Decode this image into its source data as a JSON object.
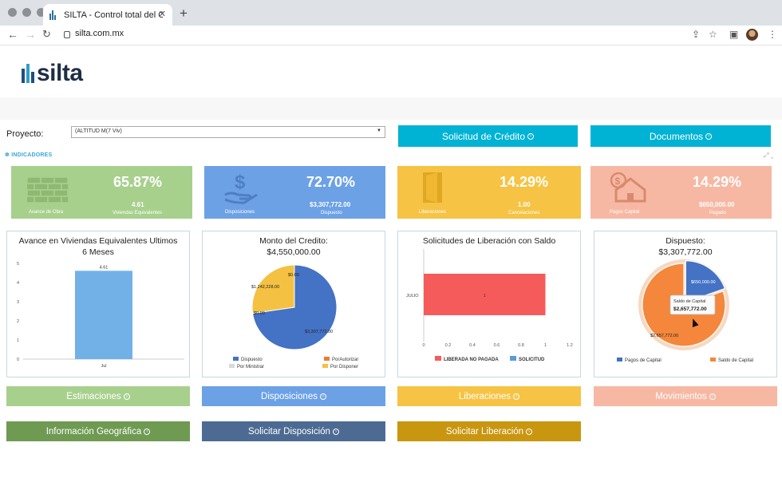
{
  "browser": {
    "tab_title": "SILTA - Control total del Crédito",
    "tab_close": "✕",
    "new_tab": "+",
    "url": "silta.com.mx"
  },
  "logo": {
    "text": "silta"
  },
  "project": {
    "label": "Proyecto:",
    "select_value": "(ALTITUD M(7 Viv)"
  },
  "top_buttons": {
    "solicitud": "Solicitud de Crédito",
    "documentos": "Documentos"
  },
  "indicators": {
    "label": "INDICADORES",
    "cards": [
      {
        "percent": "65.87%",
        "value": "4.61",
        "value_label": "Viviendas Equivalentes",
        "label": "Avance de Obra",
        "color": "#a8d08d",
        "icon": "brick-wall-icon"
      },
      {
        "percent": "72.70%",
        "value": "$3,307,772.00",
        "value_label": "Dispuesto",
        "label": "Disposiciones",
        "color": "#6da1e6",
        "icon": "money-hand-icon"
      },
      {
        "percent": "14.29%",
        "value": "1.00",
        "value_label": "Cancelaciones",
        "label": "Liberaciones",
        "color": "#f6c344",
        "icon": "door-icon"
      },
      {
        "percent": "14.29%",
        "value": "$650,000.00",
        "value_label": "Pagado",
        "label": "Pagos Capital",
        "color": "#f7b8a3",
        "icon": "house-money-icon"
      }
    ]
  },
  "chart_titles": {
    "avance": "Avance en Viviendas Equivalentes Ultimos 6 Meses",
    "monto": "Monto del Credito:",
    "monto_value": "$4,550,000.00",
    "solicitudes": "Solicitudes de Liberación con Saldo",
    "dispuesto": "Dispuesto:",
    "dispuesto_value": "$3,307,772.00"
  },
  "chart_data": [
    {
      "type": "bar",
      "title": "Avance en Viviendas Equivalentes Ultimos 6 Meses",
      "categories": [
        "Jul"
      ],
      "values": [
        4.61
      ],
      "data_labels": [
        "4.61"
      ],
      "ylim": [
        0,
        5
      ],
      "y_ticks": [
        "0",
        "1",
        "2",
        "3",
        "4",
        "5"
      ],
      "color": "#72b0e8"
    },
    {
      "type": "pie",
      "title": "Monto del Credito:",
      "subtitle": "$4,550,000.00",
      "slices": [
        {
          "name": "Dispuesto",
          "value": 3307772.0,
          "label": "$3,307,772.00",
          "color": "#4472c4"
        },
        {
          "name": "PorAutorizar",
          "value": 0,
          "label": "$0.00",
          "color": "#ed7d31"
        },
        {
          "name": "Por Ministrar",
          "value": 0,
          "label": "$0.00",
          "color": "#d9d9d9"
        },
        {
          "name": "Por Disponer",
          "value": 1242228.0,
          "label": "$1,242,228.00",
          "color": "#f4c142"
        }
      ]
    },
    {
      "type": "bar",
      "orientation": "horizontal",
      "title": "Solicitudes de Liberación con Saldo",
      "categories": [
        "JULIO"
      ],
      "series": [
        {
          "name": "LIBERADA NO PAGADA",
          "values": [
            1
          ],
          "color": "#f55b5b"
        },
        {
          "name": "SOLICITUD",
          "values": [
            0
          ],
          "color": "#5b9bd5"
        }
      ],
      "data_labels": [
        "1"
      ],
      "xlim": [
        0,
        1.2
      ],
      "x_ticks": [
        "0",
        "0.2",
        "0.4",
        "0.6",
        "0.8",
        "1",
        "1.2"
      ]
    },
    {
      "type": "pie",
      "title": "Dispuesto:",
      "subtitle": "$3,307,772.00",
      "slices": [
        {
          "name": "Pagos de Capital",
          "value": 650000.0,
          "label": "$650,000.00",
          "color": "#4472c4"
        },
        {
          "name": "Saldo de Capital",
          "value": 2657772.0,
          "label": "$2,657,772.00",
          "color": "#f4873b"
        }
      ],
      "tooltip": {
        "title": "Saldo de Capital",
        "value": "$2,657,772.00"
      }
    }
  ],
  "module_buttons": {
    "estimaciones": "Estimaciones",
    "disposiciones": "Disposiciones",
    "liberaciones": "Liberaciones",
    "movimientos": "Movimientos",
    "geo": "Información Geográfica",
    "solicitar_disposicion": "Solicitar Disposición",
    "solicitar_liberacion": "Solicitar Liberación"
  }
}
